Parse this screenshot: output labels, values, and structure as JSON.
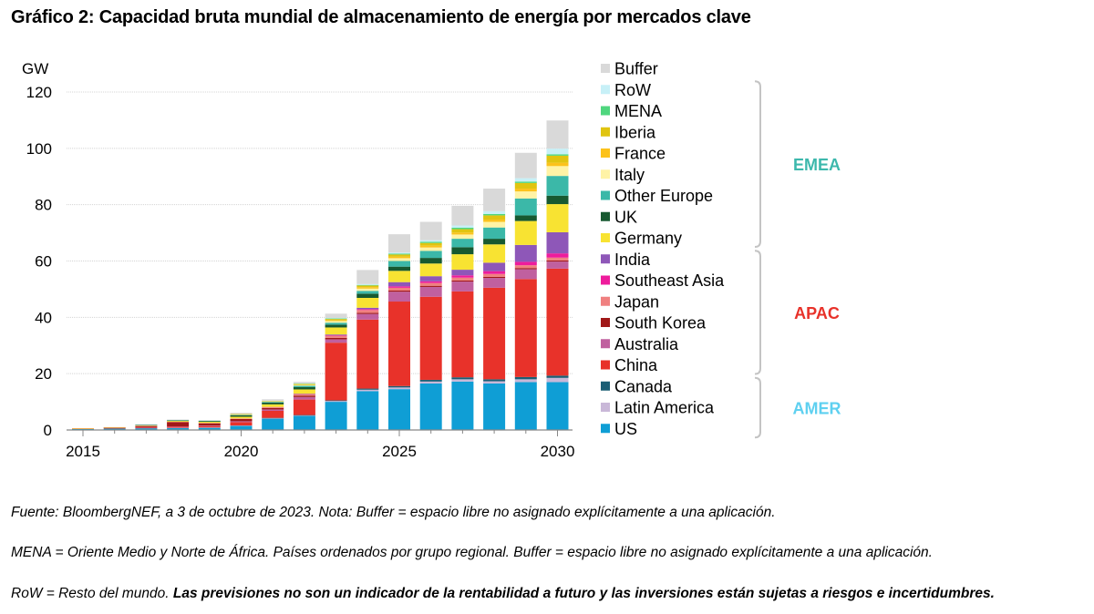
{
  "title": "Gráfico 2: Capacidad bruta mundial de almacenamiento de energía por mercados clave",
  "notes": {
    "line1": "Fuente: BloombergNEF, a 3 de octubre de 2023. Nota: Buffer = espacio libre no asignado explícitamente a una aplicación.",
    "line2": "MENA = Oriente Medio y Norte de África. Países ordenados por grupo regional. Buffer = espacio libre no asignado explícitamente a una aplicación.",
    "line3_plain": "RoW = Resto del mundo. ",
    "line3_bold": "Las previsiones no son un indicador de la rentabilidad a futuro y las inversiones están sujetas a riesgos e incertidumbres."
  },
  "chart_data": {
    "type": "bar",
    "stacked": true,
    "ylabel": "GW",
    "ylim": [
      0,
      120
    ],
    "yticks": [
      0,
      20,
      40,
      60,
      80,
      100,
      120
    ],
    "xticks": [
      "2015",
      "2020",
      "2025",
      "2030"
    ],
    "grid": true,
    "legend_position": "right",
    "categories": [
      "2015",
      "2016",
      "2017",
      "2018",
      "2019",
      "2020",
      "2021",
      "2022",
      "2023",
      "2024",
      "2025",
      "2026",
      "2027",
      "2028",
      "2029",
      "2030"
    ],
    "series": [
      {
        "name": "US",
        "color": "#0f9ed5",
        "values": [
          0.4,
          0.5,
          0.6,
          0.7,
          0.8,
          1.5,
          4.0,
          5.0,
          10.0,
          13.8,
          14.5,
          16.5,
          17.2,
          16.5,
          17.0,
          17.0
        ]
      },
      {
        "name": "Latin America",
        "color": "#c9b8d8",
        "values": [
          0.0,
          0.0,
          0.0,
          0.1,
          0.1,
          0.1,
          0.2,
          0.2,
          0.3,
          0.5,
          0.6,
          0.7,
          0.8,
          0.8,
          1.0,
          1.5
        ]
      },
      {
        "name": "Canada",
        "color": "#1b5e74",
        "values": [
          0.0,
          0.0,
          0.0,
          0.0,
          0.0,
          0.0,
          0.1,
          0.1,
          0.2,
          0.4,
          0.5,
          0.6,
          0.7,
          0.7,
          0.8,
          0.8
        ]
      },
      {
        "name": "China",
        "color": "#e8322a",
        "values": [
          0.1,
          0.2,
          0.3,
          0.4,
          0.5,
          1.2,
          2.5,
          5.5,
          20.5,
          24.5,
          30.0,
          29.5,
          30.5,
          32.5,
          34.8,
          38.0
        ]
      },
      {
        "name": "Australia",
        "color": "#c0609f",
        "values": [
          0.0,
          0.0,
          0.1,
          0.1,
          0.2,
          0.3,
          0.5,
          0.9,
          1.2,
          2.0,
          3.5,
          3.5,
          3.5,
          3.5,
          3.5,
          2.5
        ]
      },
      {
        "name": "South Korea",
        "color": "#a01818",
        "values": [
          0.0,
          0.1,
          0.4,
          1.5,
          0.8,
          0.8,
          0.5,
          0.5,
          0.5,
          0.4,
          0.4,
          0.4,
          0.4,
          0.4,
          0.4,
          0.4
        ]
      },
      {
        "name": "Japan",
        "color": "#f08080",
        "values": [
          0.0,
          0.1,
          0.1,
          0.1,
          0.1,
          0.2,
          0.4,
          0.6,
          0.8,
          1.0,
          1.0,
          1.0,
          1.0,
          1.0,
          1.0,
          1.0
        ]
      },
      {
        "name": "Southeast Asia",
        "color": "#ee1c9c",
        "values": [
          0.0,
          0.0,
          0.0,
          0.0,
          0.0,
          0.0,
          0.0,
          0.0,
          0.1,
          0.3,
          0.5,
          0.6,
          0.8,
          1.0,
          1.2,
          1.5
        ]
      },
      {
        "name": "India",
        "color": "#8e57b8",
        "values": [
          0.0,
          0.0,
          0.0,
          0.0,
          0.0,
          0.0,
          0.0,
          0.1,
          0.3,
          0.5,
          1.5,
          1.8,
          2.0,
          3.0,
          6.0,
          7.5
        ]
      },
      {
        "name": "Germany",
        "color": "#f8e332",
        "values": [
          0.1,
          0.1,
          0.2,
          0.3,
          0.4,
          0.6,
          0.9,
          1.5,
          2.5,
          3.5,
          4.0,
          4.5,
          5.5,
          6.5,
          8.5,
          10.0
        ]
      },
      {
        "name": "UK",
        "color": "#175930",
        "values": [
          0.0,
          0.0,
          0.1,
          0.2,
          0.3,
          0.5,
          0.6,
          0.8,
          1.0,
          1.5,
          1.5,
          2.0,
          2.5,
          2.0,
          2.0,
          3.0
        ]
      },
      {
        "name": "Other Europe",
        "color": "#3bb8a8",
        "values": [
          0.0,
          0.0,
          0.1,
          0.1,
          0.1,
          0.2,
          0.3,
          0.5,
          0.7,
          1.0,
          2.0,
          2.5,
          3.0,
          4.0,
          6.0,
          7.0
        ]
      },
      {
        "name": "Italy",
        "color": "#fff3a6",
        "values": [
          0.0,
          0.0,
          0.0,
          0.0,
          0.0,
          0.1,
          0.1,
          0.3,
          0.6,
          0.8,
          1.0,
          1.2,
          1.5,
          2.0,
          2.5,
          3.5
        ]
      },
      {
        "name": "France",
        "color": "#fcc21b",
        "values": [
          0.0,
          0.0,
          0.0,
          0.0,
          0.0,
          0.1,
          0.1,
          0.2,
          0.3,
          0.5,
          0.5,
          0.6,
          0.7,
          0.8,
          1.0,
          1.2
        ]
      },
      {
        "name": "Iberia",
        "color": "#e0c410",
        "values": [
          0.0,
          0.0,
          0.0,
          0.0,
          0.0,
          0.1,
          0.1,
          0.2,
          0.4,
          0.6,
          0.8,
          1.0,
          1.2,
          1.5,
          2.0,
          2.5
        ]
      },
      {
        "name": "MENA",
        "color": "#4fd67e",
        "values": [
          0.0,
          0.0,
          0.0,
          0.0,
          0.0,
          0.0,
          0.0,
          0.1,
          0.2,
          0.2,
          0.3,
          0.4,
          0.5,
          0.5,
          0.5,
          0.5
        ]
      },
      {
        "name": "RoW",
        "color": "#c7f0f7",
        "values": [
          0.0,
          0.0,
          0.0,
          0.0,
          0.0,
          0.0,
          0.1,
          0.1,
          0.2,
          0.3,
          0.4,
          0.6,
          0.8,
          1.0,
          1.2,
          2.0
        ]
      },
      {
        "name": "Buffer",
        "color": "#d9d9d9",
        "values": [
          0.0,
          0.0,
          0.1,
          0.2,
          0.2,
          0.4,
          0.5,
          0.5,
          1.5,
          5.0,
          6.5,
          6.5,
          7.0,
          8.0,
          9.0,
          10.0
        ]
      }
    ],
    "groups": [
      {
        "name": "EMEA",
        "color": "#3db8ac",
        "members": [
          "RoW",
          "MENA",
          "Iberia",
          "France",
          "Italy",
          "Other Europe",
          "UK",
          "Germany"
        ]
      },
      {
        "name": "APAC",
        "color": "#e8322a",
        "members": [
          "India",
          "Southeast Asia",
          "Japan",
          "South Korea",
          "Australia",
          "China"
        ]
      },
      {
        "name": "AMER",
        "color": "#5ed0f0",
        "members": [
          "Canada",
          "Latin America",
          "US"
        ]
      }
    ]
  }
}
